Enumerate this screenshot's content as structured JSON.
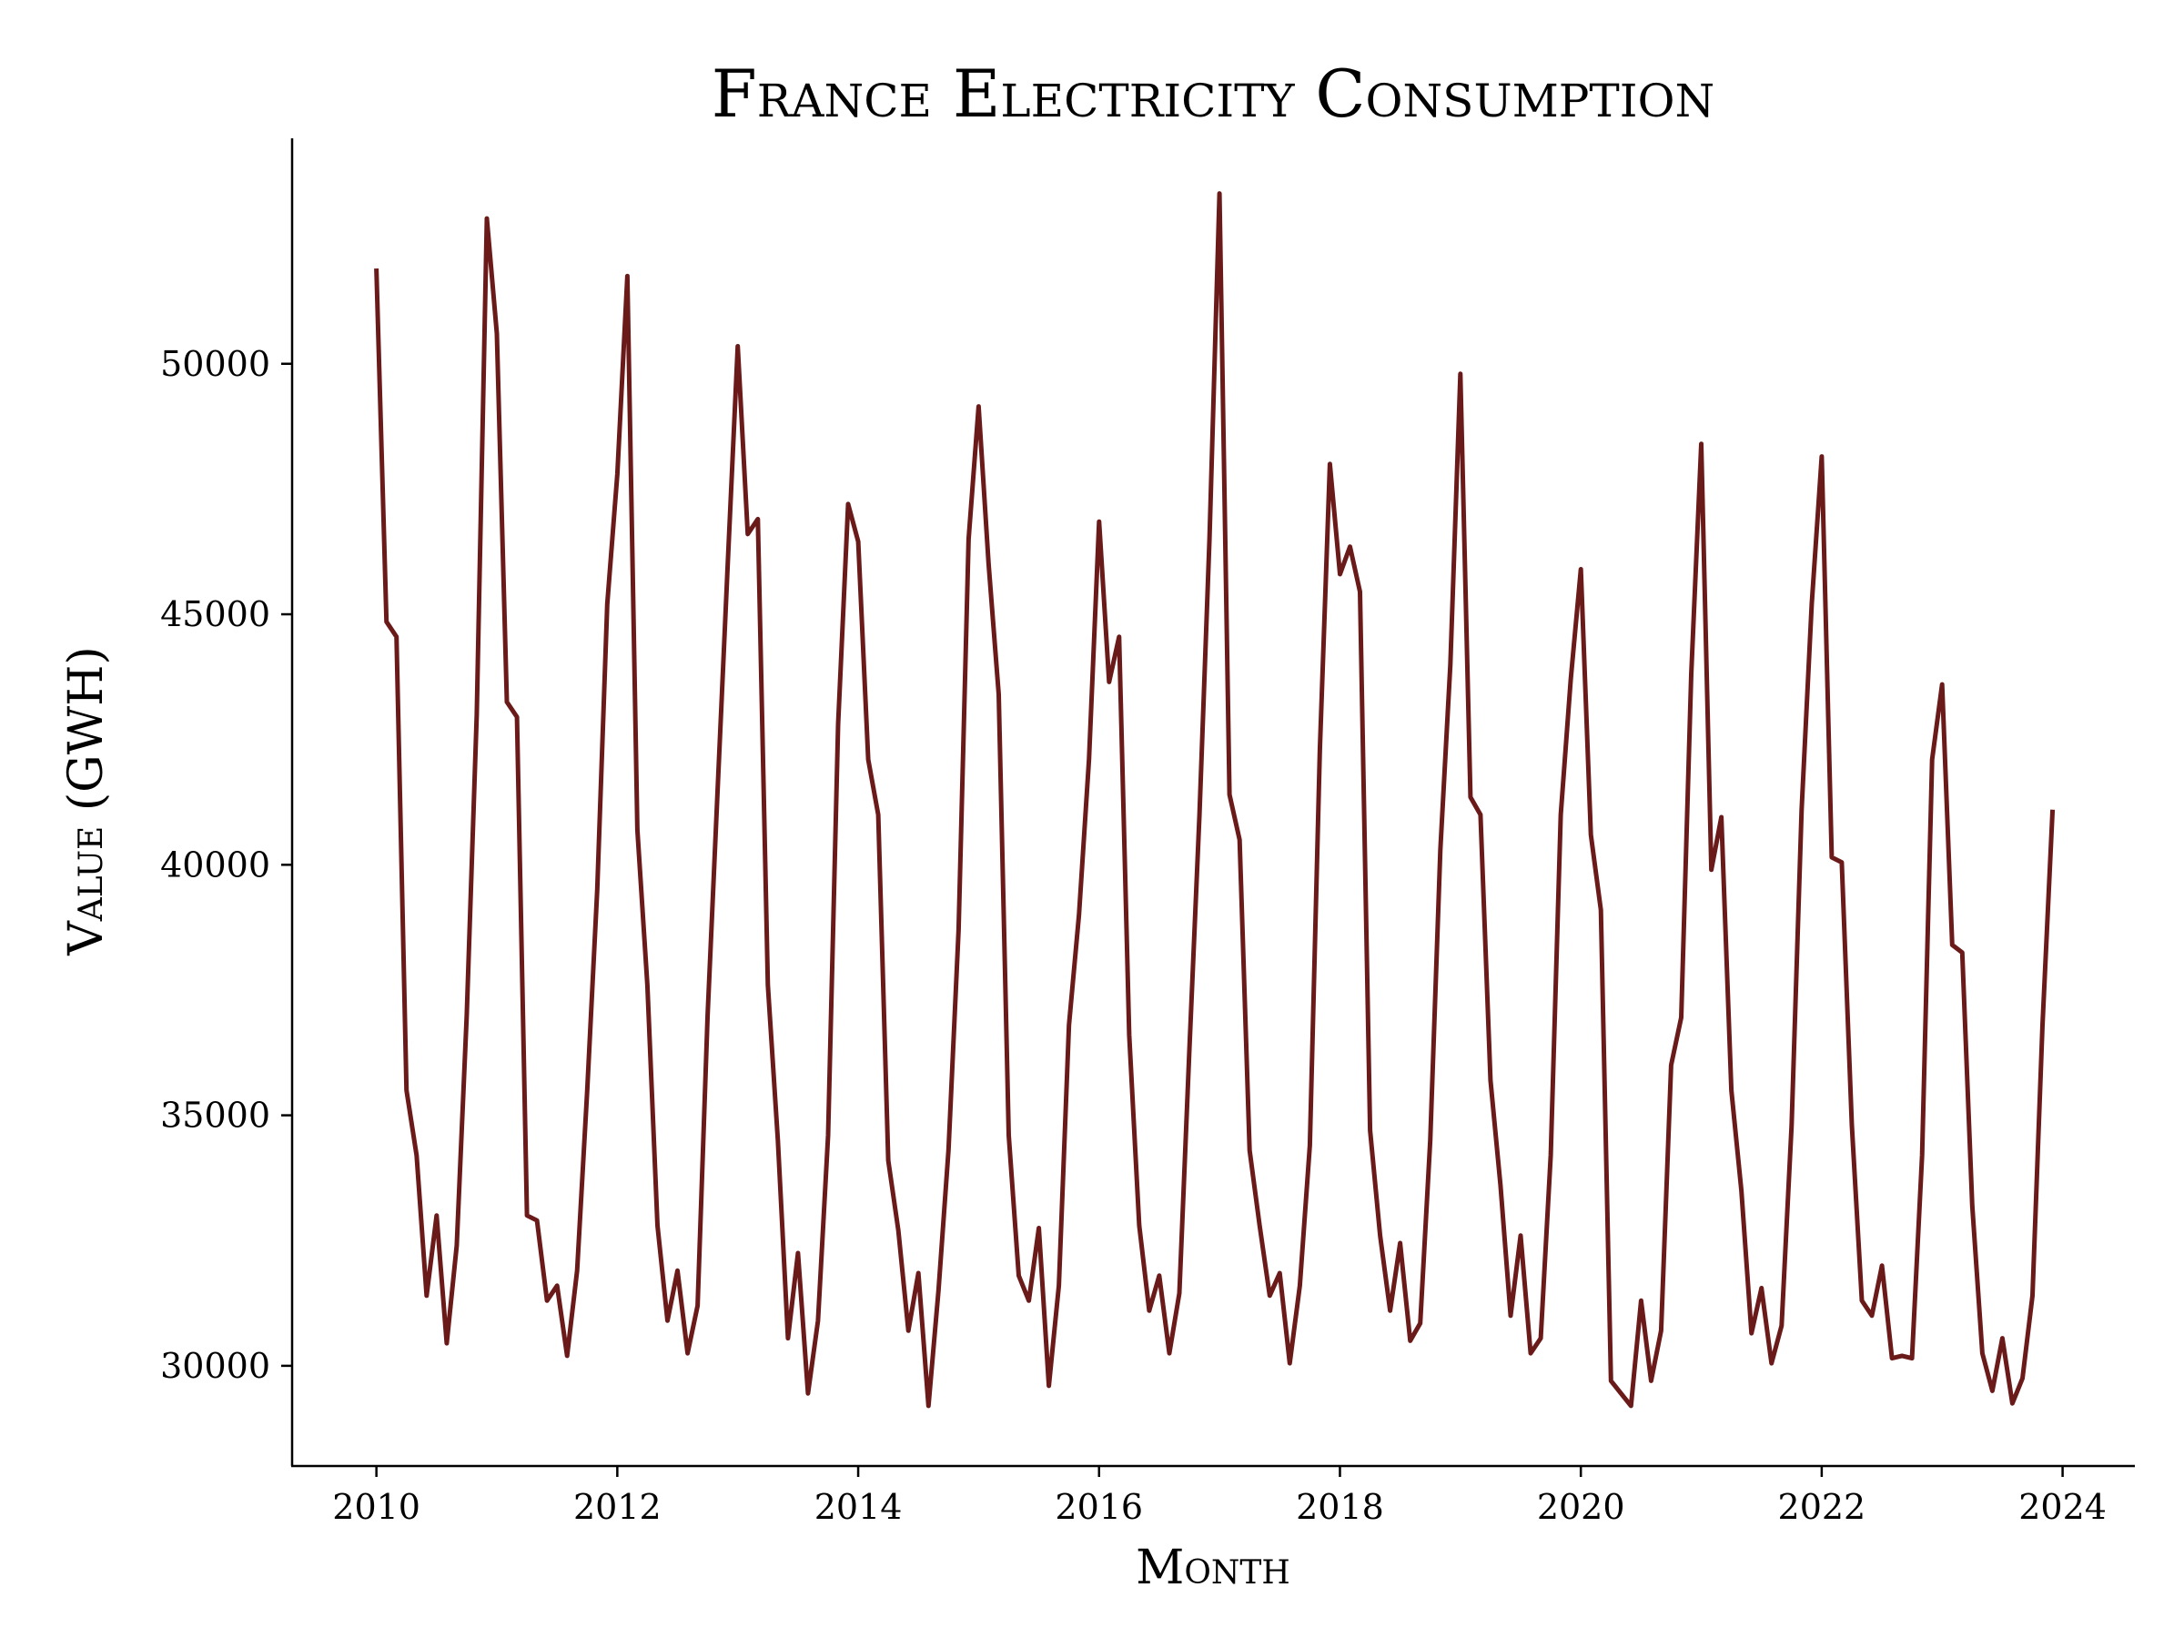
{
  "chart_data": {
    "type": "line",
    "title": "France Electricity Consumption",
    "xlabel": "Month",
    "ylabel": "Value (GWH)",
    "xlim": [
      2009.3,
      2024.6
    ],
    "ylim": [
      28000,
      54500
    ],
    "xticks": [
      "2010",
      "2012",
      "2014",
      "2016",
      "2018",
      "2020",
      "2022",
      "2024"
    ],
    "yticks": [
      "30000",
      "35000",
      "40000",
      "45000",
      "50000"
    ],
    "grid": false,
    "line_color": "#6b1a1a",
    "series": [
      {
        "x_start": "2010-01",
        "frequency": "monthly",
        "values": [
          51900,
          44850,
          44550,
          35500,
          34200,
          31400,
          33000,
          30450,
          32400,
          37000,
          43000,
          52900,
          50600,
          43250,
          42950,
          33000,
          32900,
          31300,
          31600,
          30200,
          31900,
          35500,
          39500,
          45200,
          47800,
          51750,
          40700,
          37600,
          32800,
          30900,
          31900,
          30250,
          31200,
          37000,
          41500,
          46000,
          50350,
          46600,
          46900,
          37600,
          34500,
          30550,
          32250,
          29450,
          30900,
          34600,
          42800,
          47200,
          46450,
          42100,
          41000,
          34100,
          32700,
          30700,
          31850,
          29200,
          31500,
          34300,
          38700,
          46500,
          49150,
          46000,
          43400,
          34600,
          31800,
          31300,
          32750,
          29600,
          31600,
          36800,
          39000,
          42100,
          46850,
          43650,
          44550,
          36600,
          32800,
          31100,
          31800,
          30250,
          31450,
          36300,
          41000,
          46500,
          53400,
          41400,
          40500,
          34300,
          32800,
          31400,
          31850,
          30050,
          31600,
          34400,
          42300,
          48000,
          45800,
          46350,
          45450,
          34700,
          32600,
          31100,
          32450,
          30500,
          30850,
          34500,
          40300,
          44000,
          49800,
          41350,
          41000,
          35700,
          33600,
          31000,
          32600,
          30250,
          30550,
          34200,
          41000,
          43700,
          45900,
          40600,
          39100,
          29700,
          29450,
          29200,
          31300,
          29700,
          30700,
          36000,
          36950,
          43800,
          48400,
          39900,
          40950,
          35500,
          33500,
          30650,
          31550,
          30050,
          30800,
          34800,
          41100,
          45200,
          48150,
          40150,
          40050,
          34800,
          31300,
          31000,
          32000,
          30150,
          30200,
          30150,
          34200,
          42100,
          43600,
          38400,
          38250,
          33200,
          30250,
          29500,
          30550,
          29250,
          29750,
          31400,
          36800,
          41100
        ]
      }
    ]
  }
}
